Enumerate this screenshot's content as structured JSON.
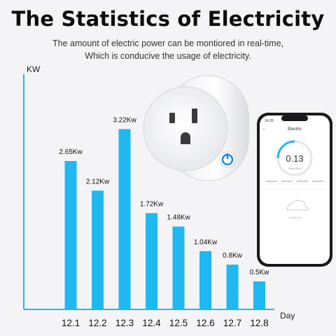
{
  "header": {
    "title": "The Statistics of Electricity",
    "subtitle_line1": "The amount of electric power can be montiored in real-time,",
    "subtitle_line2": "Which is conducive the usage of electricity."
  },
  "chart_data": {
    "type": "bar",
    "ylabel": "KW",
    "xlabel": "Day",
    "categories": [
      "12.1",
      "12.2",
      "12.3",
      "12.4",
      "12.5",
      "12.6",
      "12.7",
      "12.8"
    ],
    "values": [
      2.65,
      2.12,
      3.22,
      1.72,
      1.48,
      1.04,
      0.8,
      0.5
    ],
    "value_labels": [
      "2.65Kw",
      "2.12Kw",
      "3.22Kw",
      "1.72Kw",
      "1.48Kw",
      "1.04Kw",
      "0.8Kw",
      "0.5Kw"
    ],
    "ylim": [
      0,
      4.2
    ],
    "bar_color": "#1fb8f0",
    "axis_color": "#1fb8f0",
    "grid": false
  },
  "phone_app": {
    "screen_title": "Electric",
    "reading": "0.13",
    "time": "14:35",
    "today_label": "Today (kWh)",
    "caption": "Empty Log"
  },
  "colors": {
    "accent": "#1fb8f0",
    "plug_body": "#ffffff",
    "plug_button": "#1e88e5"
  }
}
